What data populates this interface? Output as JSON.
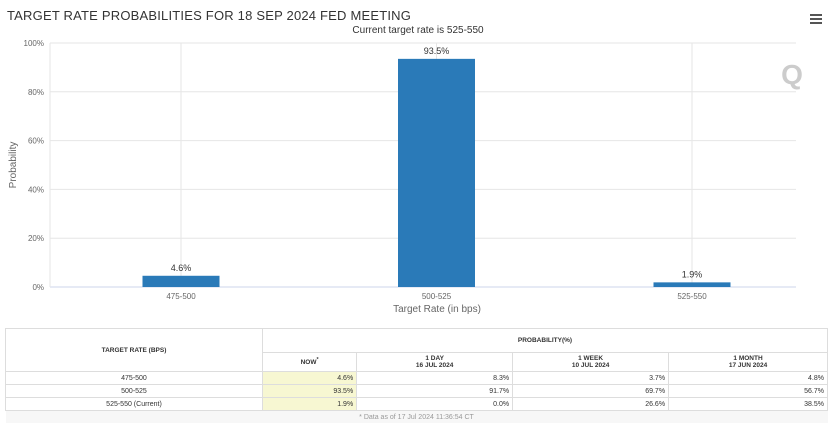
{
  "title": "TARGET RATE PROBABILITIES FOR 18 SEP 2024 FED MEETING",
  "menu_icon": "hamburger-menu-icon",
  "watermark": "Q",
  "chart_data": {
    "type": "bar",
    "subtitle": "Current target rate is 525-550",
    "categories": [
      "475-500",
      "500-525",
      "525-550"
    ],
    "values": [
      4.6,
      93.5,
      1.9
    ],
    "data_labels": [
      "4.6%",
      "93.5%",
      "1.9%"
    ],
    "xlabel": "Target Rate (in bps)",
    "ylabel": "Probability",
    "ylim": [
      0,
      100
    ],
    "yticks": [
      "0%",
      "20%",
      "40%",
      "60%",
      "80%",
      "100%"
    ],
    "color": "#2a7ab8",
    "grid": true
  },
  "table": {
    "rate_header": "TARGET RATE (BPS)",
    "prob_header": "PROBABILITY(%)",
    "columns": [
      {
        "label": "NOW",
        "sup": "*",
        "date": ""
      },
      {
        "label": "1 DAY",
        "date": "16 JUL 2024"
      },
      {
        "label": "1 WEEK",
        "date": "10 JUL 2024"
      },
      {
        "label": "1 MONTH",
        "date": "17 JUN 2024"
      }
    ],
    "rows": [
      {
        "rate": "475-500",
        "values": [
          "4.6%",
          "8.3%",
          "3.7%",
          "4.8%"
        ]
      },
      {
        "rate": "500-525",
        "values": [
          "93.5%",
          "91.7%",
          "69.7%",
          "56.7%"
        ]
      },
      {
        "rate": "525-550 (Current)",
        "values": [
          "1.9%",
          "0.0%",
          "26.6%",
          "38.5%"
        ]
      }
    ],
    "footnote": "* Data as of 17 Jul 2024 11:36:54 CT"
  }
}
